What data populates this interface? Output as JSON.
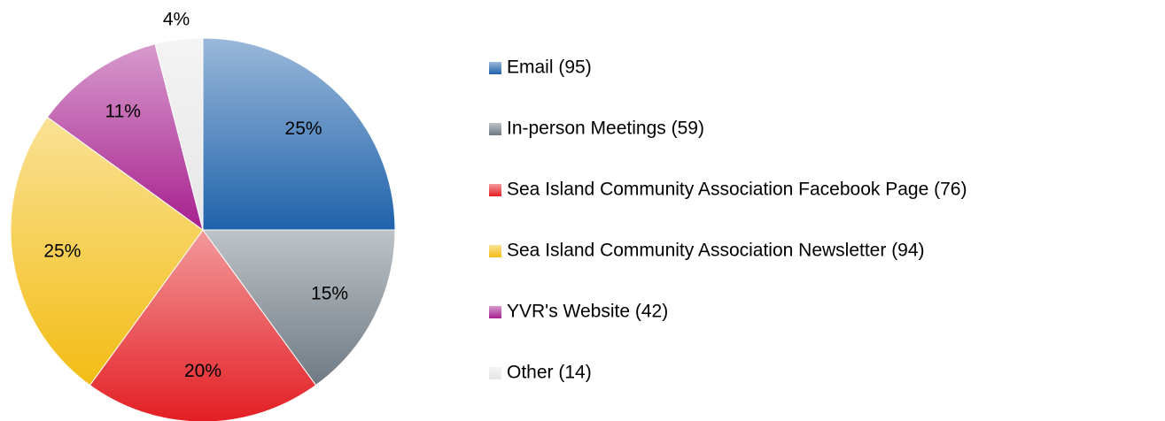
{
  "chart_data": {
    "type": "pie",
    "categories": [
      "Email (95)",
      "In-person Meetings (59)",
      "Sea Island Community Association Facebook Page (76)",
      "Sea Island Community Association Newsletter (94)",
      "YVR's Website (42)",
      "Other (14)"
    ],
    "values": [
      25,
      15,
      20,
      25,
      11,
      4
    ],
    "value_labels": [
      "25%",
      "15%",
      "20%",
      "25%",
      "11%",
      "4%"
    ],
    "colors": [
      "#1f62ab",
      "#6f7a83",
      "#e31e23",
      "#f3bd14",
      "#a7208f",
      "#e6e6e6"
    ],
    "legend": "right"
  }
}
